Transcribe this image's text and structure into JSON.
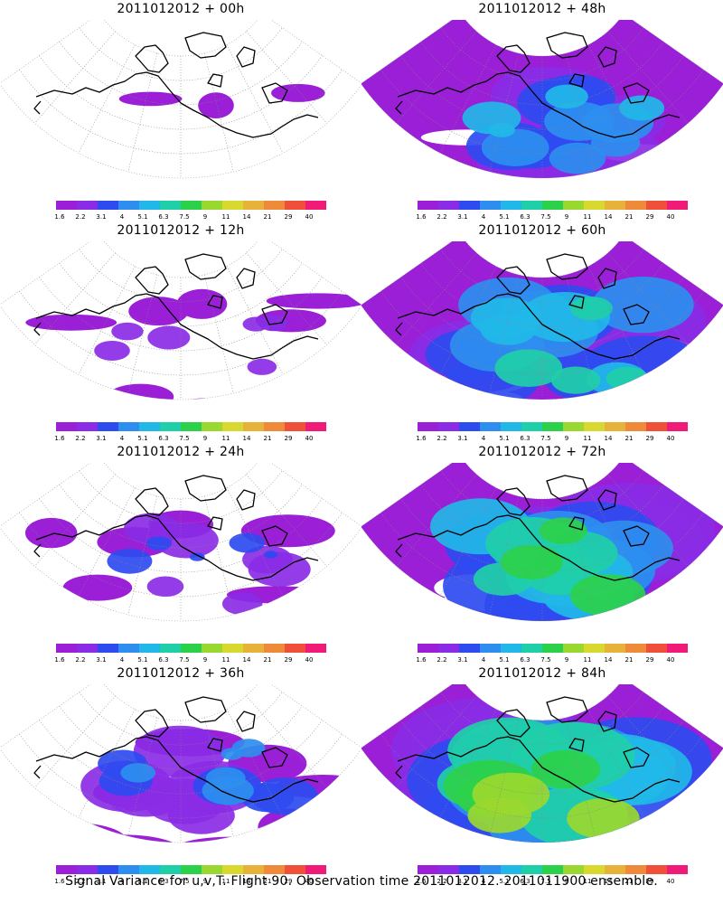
{
  "panels": [
    {
      "id": "p00",
      "title": "2011012012 + 00h",
      "intensity": 0
    },
    {
      "id": "p48",
      "title": "2011012012 + 48h",
      "intensity": 4
    },
    {
      "id": "p12",
      "title": "2011012012 + 12h",
      "intensity": 1
    },
    {
      "id": "p60",
      "title": "2011012012 + 60h",
      "intensity": 5
    },
    {
      "id": "p24",
      "title": "2011012012 + 24h",
      "intensity": 2
    },
    {
      "id": "p72",
      "title": "2011012012 + 72h",
      "intensity": 6
    },
    {
      "id": "p36",
      "title": "2011012012 + 36h",
      "intensity": 3
    },
    {
      "id": "p84",
      "title": "2011012012 + 84h",
      "intensity": 7
    }
  ],
  "colorbar": {
    "labels": [
      "1.6",
      "2.2",
      "3.1",
      "4",
      "5.1",
      "6.3",
      "7.5",
      "9",
      "11",
      "14",
      "21",
      "29",
      "40"
    ],
    "colors": [
      "#9a1fd6",
      "#8a2be6",
      "#2e4bf0",
      "#2d8ef0",
      "#21b8e8",
      "#1fcfa8",
      "#2bd14a",
      "#9ad82f",
      "#d8d82f",
      "#e6b23a",
      "#ee8a3a",
      "#f0503a",
      "#f01a78"
    ]
  },
  "footer": "Signal Variance for u,v,T. Flight 90. Observation time 2011012012. 2011011900 ensemble."
}
